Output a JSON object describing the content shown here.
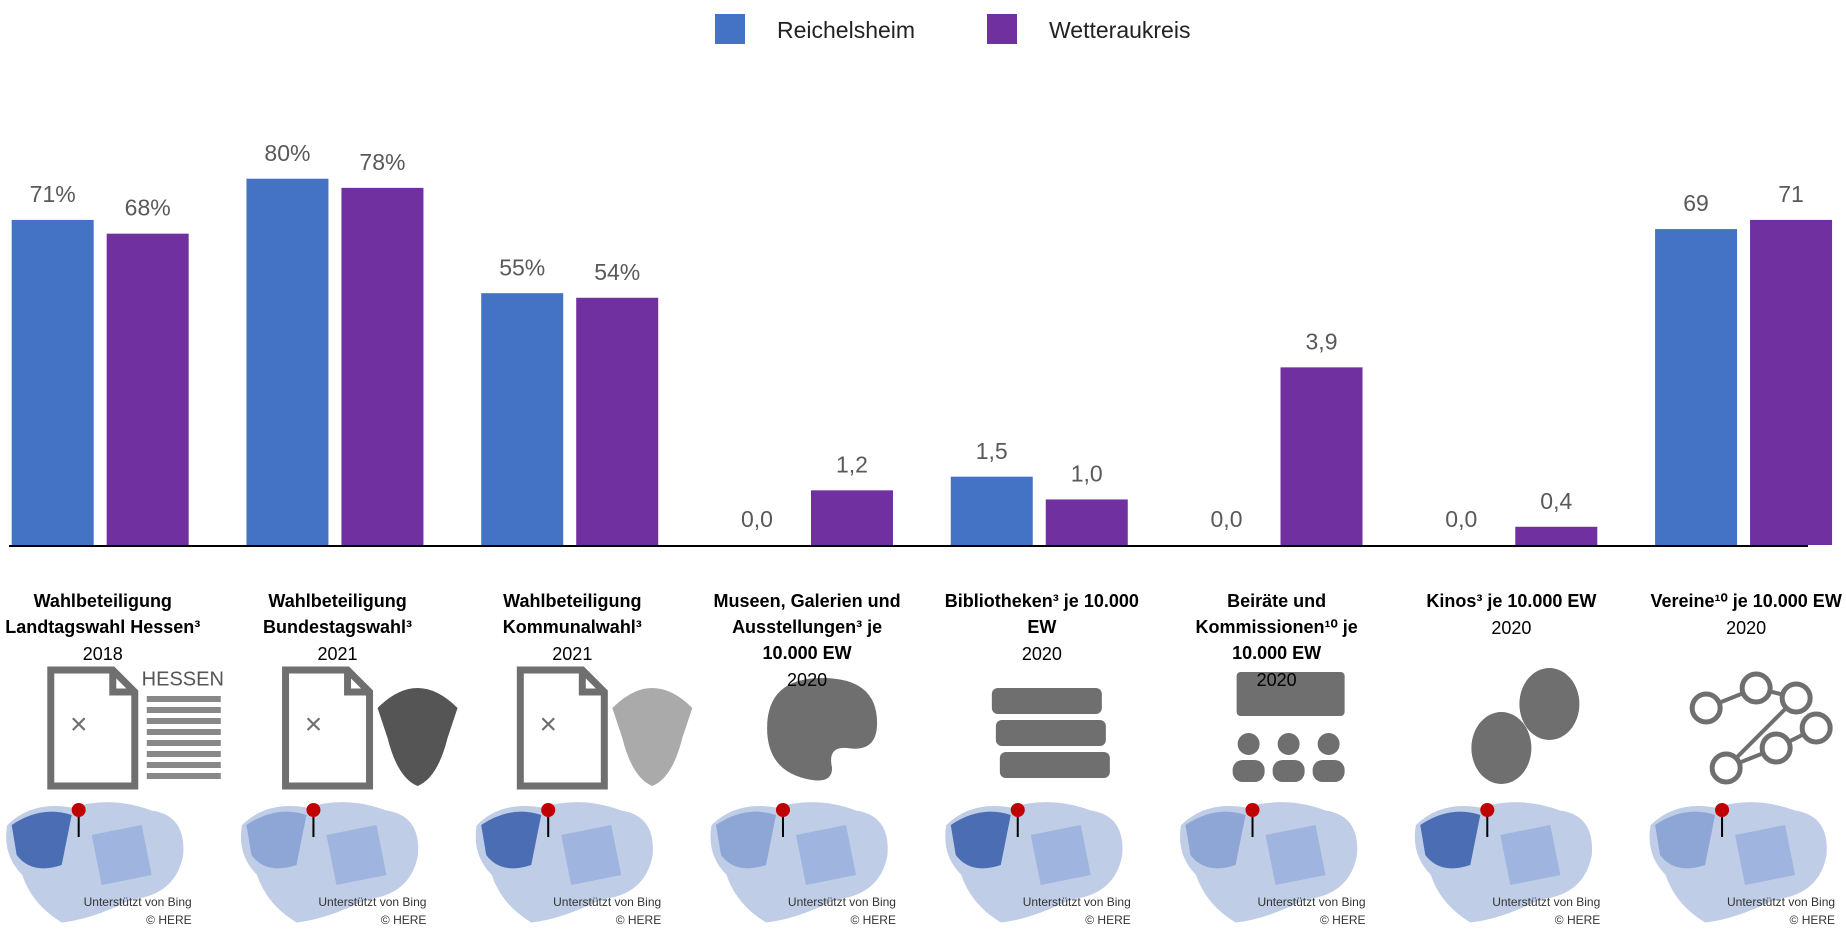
{
  "chart_data": {
    "type": "bar",
    "categories": [
      "Wahlbeteiligung Landtagswahl Hessen³",
      "Wahlbeteiligung Bundestagswahl³",
      "Wahlbeteiligung Kommunalwahl³",
      "Museen, Galerien und Ausstellungen³ je 10.000 EW",
      "Bibliotheken³ je 10.000 EW",
      "Beiräte und Kommissionen¹⁰ je 10.000 EW",
      "Kinos³ je 10.000 EW",
      "Vereine¹⁰ je 10.000 EW"
    ],
    "years": [
      "2018",
      "2021",
      "2021",
      "2020",
      "2020",
      "2020",
      "2020",
      "2020"
    ],
    "series": [
      {
        "name": "Reichelsheim",
        "color": "#4472c4",
        "values": [
          71,
          80,
          55,
          0,
          1.5,
          0,
          0,
          69
        ],
        "value_labels": [
          "71%",
          "80%",
          "55%",
          "0,0",
          "1,5",
          "0,0",
          "0,0",
          "69"
        ]
      },
      {
        "name": "Wetteraukreis",
        "color": "#7030a0",
        "values": [
          68,
          78,
          54,
          1.2,
          1.0,
          3.9,
          0.4,
          71
        ],
        "value_labels": [
          "68%",
          "78%",
          "54%",
          "1,2",
          "1,0",
          "3,9",
          "0,4",
          "71"
        ]
      }
    ],
    "legend": "top"
  },
  "logo_text": "HESSEN",
  "map_attribution": [
    "Unterstützt von Bing",
    "© HERE"
  ]
}
